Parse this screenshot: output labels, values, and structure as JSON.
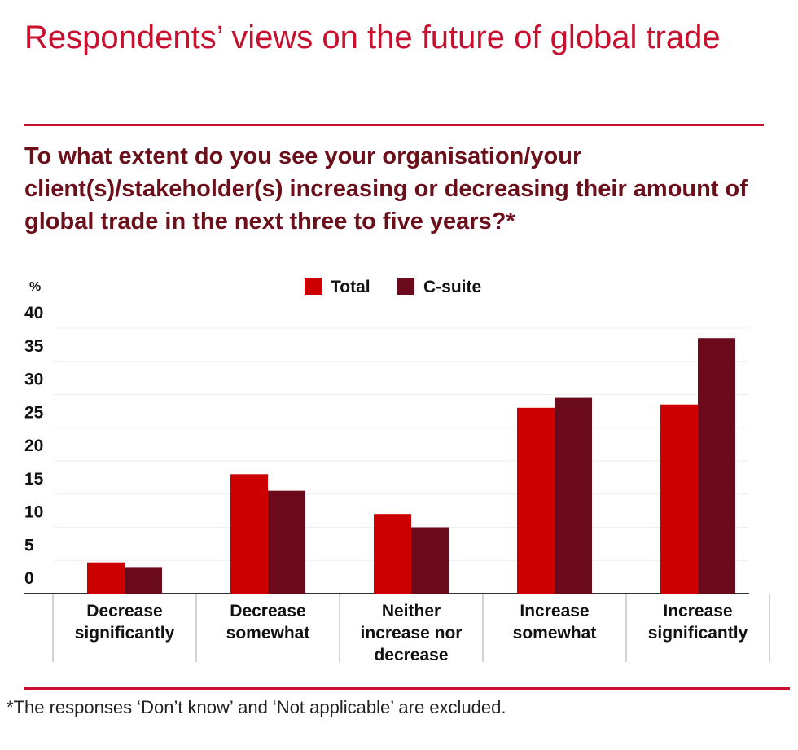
{
  "title": "Respondents’ views on the future of global trade",
  "question": "To what extent do you see your organisation/your client(s)/stakeholder(s) increasing or decreasing their amount of global trade in the next three to five years?*",
  "footnote": "*The responses ‘Don’t know’ and ‘Not applicable’ are excluded.",
  "colors": {
    "accent": "#c8102e",
    "dark": "#6b0f1a",
    "total": "#cc0000",
    "csuite": "#6b0a1a"
  },
  "chart_data": {
    "type": "bar",
    "ylabel": "%",
    "ylim": [
      0,
      40
    ],
    "yticks": [
      0,
      5,
      10,
      15,
      20,
      25,
      30,
      35,
      40
    ],
    "categories": [
      [
        "Decrease",
        "significantly"
      ],
      [
        "Decrease",
        "somewhat"
      ],
      [
        "Neither",
        "increase nor",
        "decrease"
      ],
      [
        "Increase",
        "somewhat"
      ],
      [
        "Increase",
        "significantly"
      ]
    ],
    "series": [
      {
        "name": "Total",
        "color": "#cc0000",
        "values": [
          4.7,
          18,
          12,
          28,
          28.5
        ]
      },
      {
        "name": "C-suite",
        "color": "#6b0a1a",
        "values": [
          4,
          15.5,
          10,
          29.5,
          38.5
        ]
      }
    ],
    "legend": "top-center",
    "grid": true
  }
}
